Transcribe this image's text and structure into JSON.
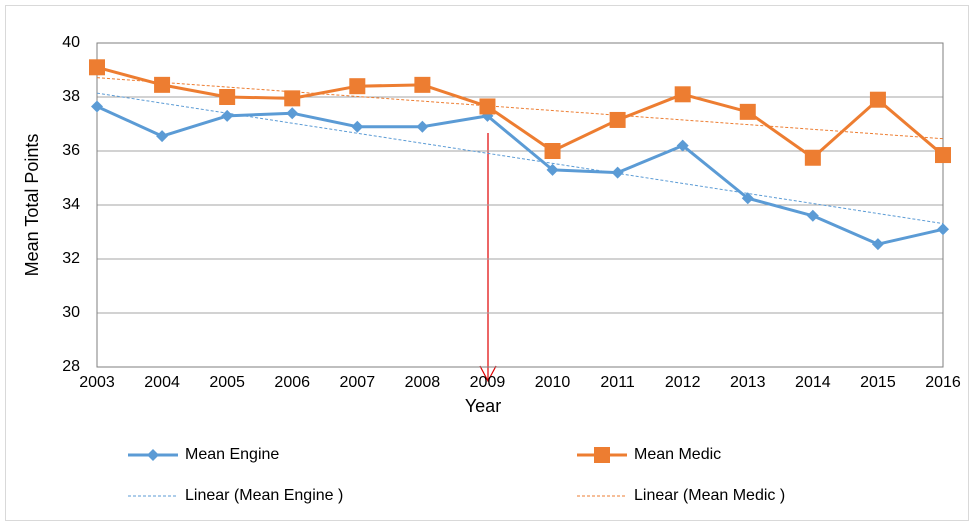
{
  "chart_data": {
    "type": "line",
    "x_label": "Year",
    "y_label": "Mean Total Points",
    "categories": [
      "2003",
      "2004",
      "2005",
      "2006",
      "2007",
      "2008",
      "2009",
      "2010",
      "2011",
      "2012",
      "2013",
      "2014",
      "2015",
      "2016"
    ],
    "series": [
      {
        "name": "Mean Engine",
        "color": "#5b9bd5",
        "marker": "diamond",
        "values": [
          37.65,
          36.55,
          37.3,
          37.4,
          36.9,
          36.9,
          37.3,
          35.3,
          35.2,
          36.2,
          34.25,
          33.6,
          32.55,
          33.1
        ],
        "trendline": {
          "name": "Linear (Mean Engine )",
          "type": "linear"
        }
      },
      {
        "name": "Mean Medic",
        "color": "#ed7d31",
        "marker": "square",
        "values": [
          39.1,
          38.45,
          38.0,
          37.95,
          38.4,
          38.45,
          37.65,
          36.0,
          37.15,
          38.1,
          37.45,
          35.75,
          37.9,
          35.85
        ],
        "trendline": {
          "name": "Linear (Mean Medic )",
          "type": "linear"
        }
      }
    ],
    "ylim": [
      28,
      40
    ],
    "yticks": [
      28,
      30,
      32,
      34,
      36,
      38,
      40
    ],
    "grid": true
  }
}
